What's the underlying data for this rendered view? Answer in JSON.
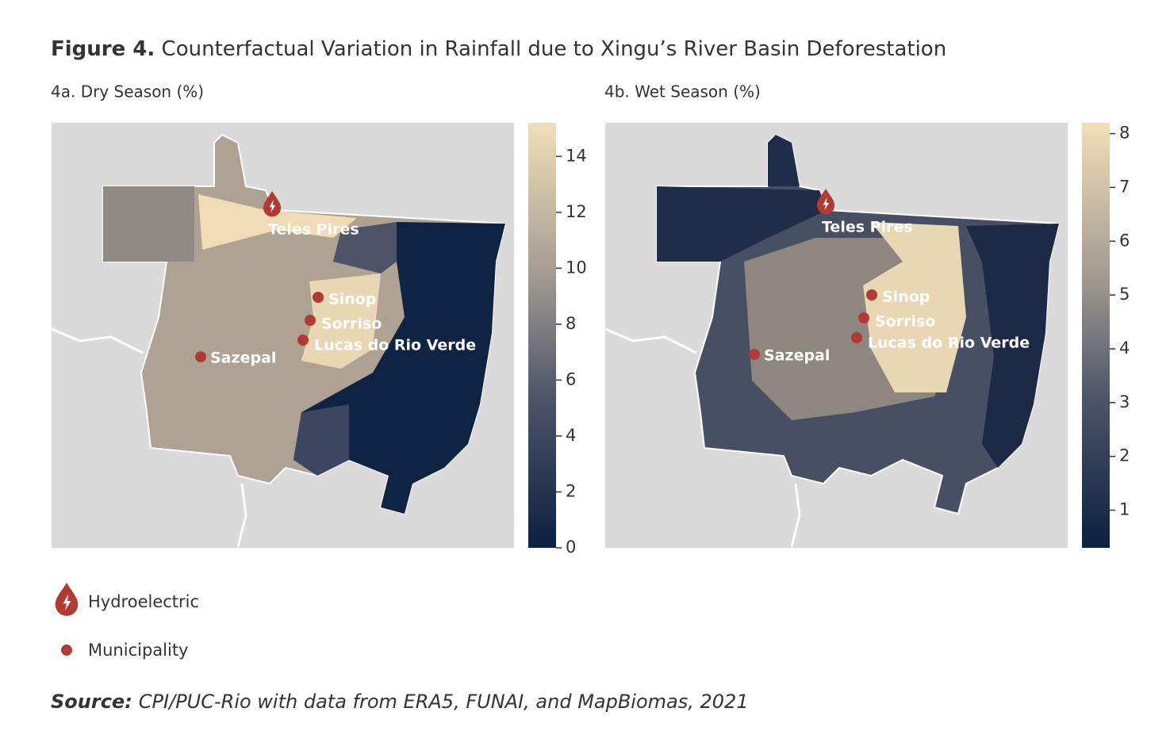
{
  "title": {
    "label": "Figure 4.",
    "text": "Counterfactual Variation in Rainfall due to Xingu’s River Basin Deforestation"
  },
  "panels": [
    {
      "subtitle": "4a. Dry Season (%)",
      "colorbar": {
        "lim": [
          0,
          15.2
        ],
        "ticks": [
          0,
          2,
          4,
          6,
          8,
          10,
          12,
          14
        ]
      },
      "hydroelectric": "Teles Pires",
      "municipalities": [
        "Sinop",
        "Sorriso",
        "Lucas do Rio Verde",
        "Sazepal"
      ]
    },
    {
      "subtitle": "4b. Wet Season (%)",
      "colorbar": {
        "lim": [
          0.3,
          8.2
        ],
        "ticks": [
          1,
          2,
          3,
          4,
          5,
          6,
          7,
          8
        ]
      },
      "hydroelectric": "Teles Pires",
      "municipalities": [
        "Sinop",
        "Sorriso",
        "Lucas do Rio Verde",
        "Sazepal"
      ]
    }
  ],
  "legend": [
    "Hydroelectric",
    "Municipality"
  ],
  "source": {
    "label": "Source:",
    "text": "CPI/PUC-Rio with data from ERA5, FUNAI, and MapBiomas, 2021"
  }
}
